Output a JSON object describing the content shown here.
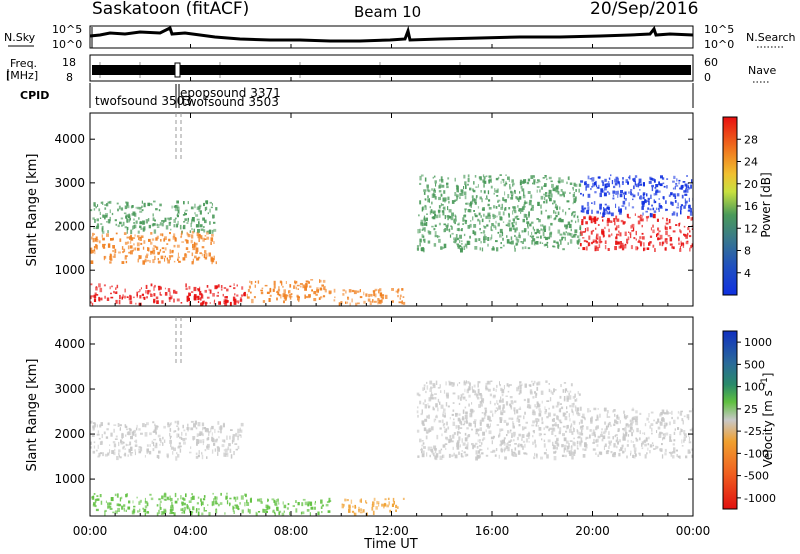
{
  "header": {
    "title": "Saskatoon (fitACF)",
    "beam": "Beam 10",
    "date": "20/Sep/2016"
  },
  "nsky_panel": {
    "left_label": "N.Sky",
    "left_ticks": [
      "10^5",
      "10^0"
    ],
    "right_label": "N.Search",
    "right_ticks": [
      "10^5",
      "10^0"
    ]
  },
  "freq_panel": {
    "left_label_line1": "Freq.",
    "left_label_line2": "[MHz]",
    "left_ticks": [
      "18",
      "8"
    ],
    "right_label": "Nave",
    "right_ticks": [
      "60",
      "0"
    ]
  },
  "cpid_panel": {
    "label": "CPID",
    "entries": [
      {
        "text": "twofsound 3503",
        "time_h": 0.0
      },
      {
        "text": "epopsound 3371",
        "time_h": 3.4
      },
      {
        "text": "twofsound 3503",
        "time_h": 3.75
      }
    ]
  },
  "x_axis": {
    "label": "Time UT",
    "ticks": [
      "00:00",
      "04:00",
      "08:00",
      "12:00",
      "16:00",
      "20:00",
      "00:00"
    ],
    "tick_hours": [
      0,
      4,
      8,
      12,
      16,
      20,
      24
    ],
    "range": [
      0,
      24
    ]
  },
  "power_panel": {
    "ylabel": "Slant Range [km]",
    "yticks": [
      "1000",
      "2000",
      "3000",
      "4000"
    ],
    "ytick_values": [
      1000,
      2000,
      3000,
      4000
    ],
    "yrange": [
      180,
      4600
    ],
    "colorbar_label": "Power [dB]",
    "colorbar_ticks": [
      "4",
      "8",
      "12",
      "16",
      "20",
      "24",
      "28"
    ],
    "colors": {
      "low": "#1030e0",
      "mid": "#4a9a5a",
      "yellow": "#f0e040",
      "orange": "#f08020",
      "high": "#e81010"
    }
  },
  "velocity_panel": {
    "ylabel": "Slant Range [km]",
    "yticks": [
      "1000",
      "2000",
      "3000",
      "4000"
    ],
    "ytick_values": [
      1000,
      2000,
      3000,
      4000
    ],
    "yrange": [
      180,
      4600
    ],
    "colorbar_label": "Velocity [m s^-1]",
    "colorbar_ticks": [
      "1000",
      "500",
      "100",
      "25",
      "-25",
      "-100",
      "-500",
      "-1000"
    ],
    "colors": {
      "pos_high": "#1030c0",
      "pos_mid": "#2a8a6a",
      "pos_low": "#60c040",
      "zero": "#c8c8c8",
      "neg_low": "#f0a030",
      "neg_high": "#e01010"
    }
  },
  "chart_data": [
    {
      "type": "heatmap",
      "name": "power",
      "x_range": [
        0,
        24
      ],
      "y_range": [
        180,
        4600
      ],
      "regions": [
        {
          "t0": 0.0,
          "t1": 6.2,
          "r0": 250,
          "r1": 700,
          "level": "high"
        },
        {
          "t0": 0.0,
          "t1": 5.0,
          "r0": 1200,
          "r1": 1900,
          "level": "orange"
        },
        {
          "t0": 0.0,
          "t1": 5.0,
          "r0": 1900,
          "r1": 2600,
          "level": "mid"
        },
        {
          "t0": 6.2,
          "t1": 9.5,
          "r0": 300,
          "r1": 800,
          "level": "orange"
        },
        {
          "t0": 9.5,
          "t1": 12.5,
          "r0": 250,
          "r1": 600,
          "level": "orange"
        },
        {
          "t0": 13.0,
          "t1": 19.5,
          "r0": 1500,
          "r1": 3200,
          "level": "mid"
        },
        {
          "t0": 19.5,
          "t1": 24.0,
          "r0": 1500,
          "r1": 2300,
          "level": "high"
        },
        {
          "t0": 19.5,
          "t1": 24.0,
          "r0": 2300,
          "r1": 3200,
          "level": "low"
        }
      ]
    },
    {
      "type": "heatmap",
      "name": "velocity",
      "x_range": [
        0,
        24
      ],
      "y_range": [
        180,
        4600
      ],
      "regions": [
        {
          "t0": 0.0,
          "t1": 6.2,
          "r0": 250,
          "r1": 700,
          "level": "pos_low"
        },
        {
          "t0": 6.2,
          "t1": 9.5,
          "r0": 250,
          "r1": 600,
          "level": "pos_low"
        },
        {
          "t0": 10.0,
          "t1": 12.5,
          "r0": 250,
          "r1": 600,
          "level": "neg_low"
        },
        {
          "t0": 0.0,
          "t1": 6.0,
          "r0": 1500,
          "r1": 2300,
          "level": "zero"
        },
        {
          "t0": 13.0,
          "t1": 19.5,
          "r0": 1500,
          "r1": 3200,
          "level": "zero"
        },
        {
          "t0": 19.5,
          "t1": 24.0,
          "r0": 1500,
          "r1": 2600,
          "level": "zero"
        }
      ]
    }
  ]
}
